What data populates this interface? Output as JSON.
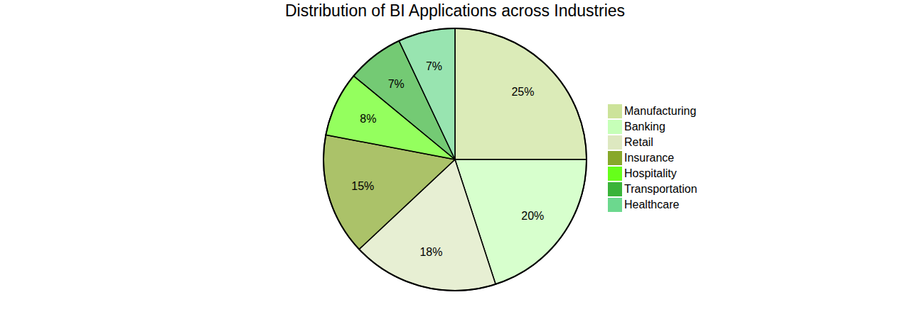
{
  "chart_data": {
    "type": "pie",
    "title": "Distribution of BI Applications across Industries",
    "categories": [
      "Manufacturing",
      "Banking",
      "Retail",
      "Insurance",
      "Hospitality",
      "Transportation",
      "Healthcare"
    ],
    "values": [
      25,
      20,
      18,
      15,
      8,
      7,
      7
    ],
    "value_labels": [
      "25%",
      "20%",
      "18%",
      "15%",
      "8%",
      "7%",
      "7%"
    ],
    "colors": [
      "#cce39a",
      "#c6ffb8",
      "#dde8c0",
      "#87a82a",
      "#66ff1a",
      "#39b339",
      "#6cd88e"
    ],
    "data_labels": true,
    "legend": "right"
  }
}
